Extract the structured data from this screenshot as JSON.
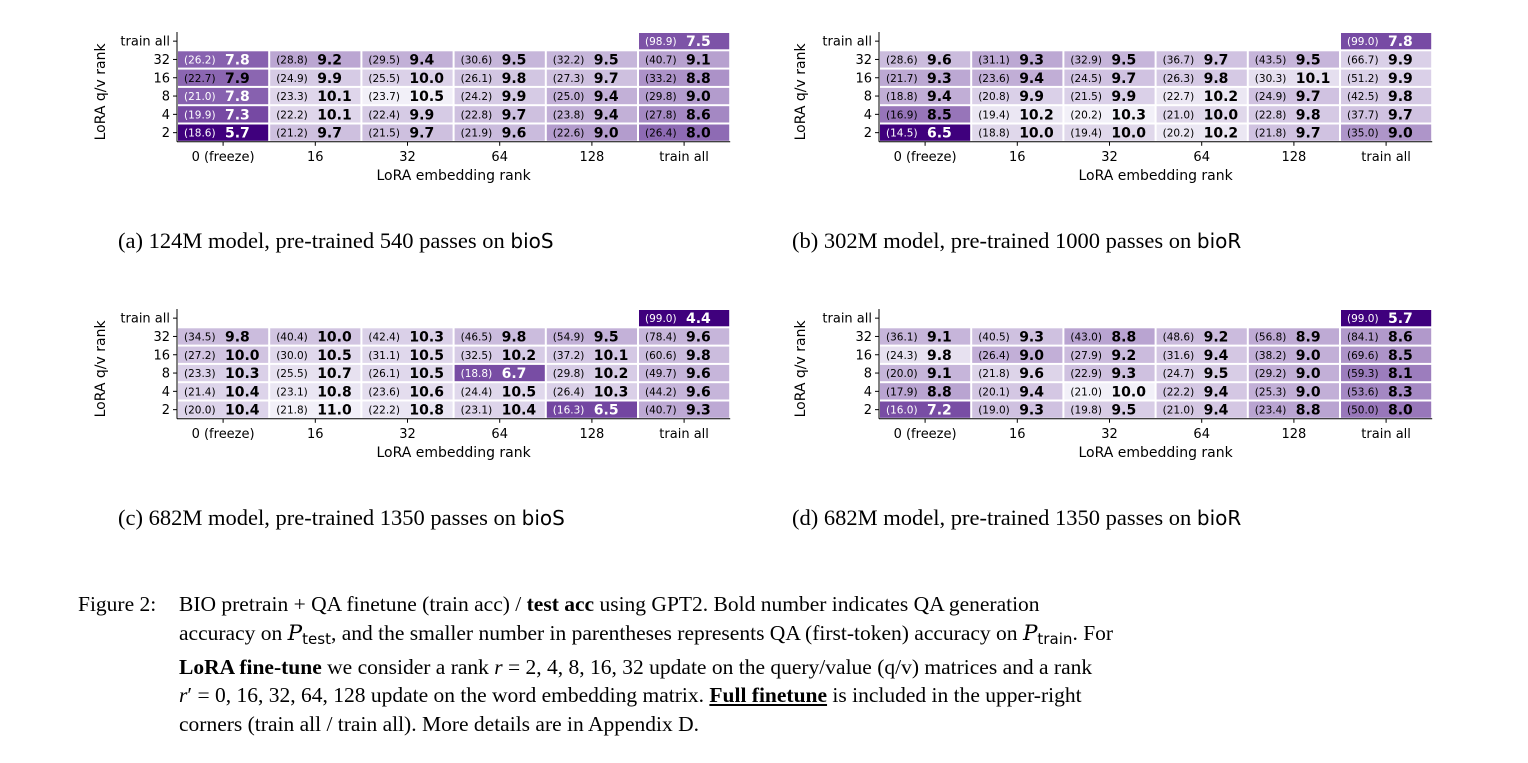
{
  "chart_data": [
    {
      "type": "heatmap",
      "xlabel": "LoRA embedding rank",
      "ylabel": "LoRA q/v rank",
      "x_categories": [
        "0 (freeze)",
        "16",
        "32",
        "64",
        "128",
        "train all"
      ],
      "y_categories": [
        "train all",
        "32",
        "16",
        "8",
        "4",
        "2"
      ],
      "cells": [
        [
          null,
          null,
          null,
          null,
          null,
          {
            "train": "98.9",
            "test": "7.5"
          }
        ],
        [
          {
            "train": "26.2",
            "test": "7.8"
          },
          {
            "train": "28.8",
            "test": "9.2"
          },
          {
            "train": "29.5",
            "test": "9.4"
          },
          {
            "train": "30.6",
            "test": "9.5"
          },
          {
            "train": "32.2",
            "test": "9.5"
          },
          {
            "train": "40.7",
            "test": "9.1"
          }
        ],
        [
          {
            "train": "22.7",
            "test": "7.9"
          },
          {
            "train": "24.9",
            "test": "9.9"
          },
          {
            "train": "25.5",
            "test": "10.0"
          },
          {
            "train": "26.1",
            "test": "9.8"
          },
          {
            "train": "27.3",
            "test": "9.7"
          },
          {
            "train": "33.2",
            "test": "8.8"
          }
        ],
        [
          {
            "train": "21.0",
            "test": "7.8"
          },
          {
            "train": "23.3",
            "test": "10.1"
          },
          {
            "train": "23.7",
            "test": "10.5"
          },
          {
            "train": "24.2",
            "test": "9.9"
          },
          {
            "train": "25.0",
            "test": "9.4"
          },
          {
            "train": "29.8",
            "test": "9.0"
          }
        ],
        [
          {
            "train": "19.9",
            "test": "7.3"
          },
          {
            "train": "22.2",
            "test": "10.1"
          },
          {
            "train": "22.4",
            "test": "9.9"
          },
          {
            "train": "22.8",
            "test": "9.7"
          },
          {
            "train": "23.8",
            "test": "9.4"
          },
          {
            "train": "27.8",
            "test": "8.6"
          }
        ],
        [
          {
            "train": "18.6",
            "test": "5.7"
          },
          {
            "train": "21.2",
            "test": "9.7"
          },
          {
            "train": "21.5",
            "test": "9.7"
          },
          {
            "train": "21.9",
            "test": "9.6"
          },
          {
            "train": "22.6",
            "test": "9.0"
          },
          {
            "train": "26.4",
            "test": "8.0"
          }
        ]
      ],
      "caption": {
        "label": "(a) 124M model, pre-trained 540 passes on ",
        "dataset": "bioS"
      }
    },
    {
      "type": "heatmap",
      "xlabel": "LoRA embedding rank",
      "ylabel": "LoRA q/v rank",
      "x_categories": [
        "0 (freeze)",
        "16",
        "32",
        "64",
        "128",
        "train all"
      ],
      "y_categories": [
        "train all",
        "32",
        "16",
        "8",
        "4",
        "2"
      ],
      "cells": [
        [
          null,
          null,
          null,
          null,
          null,
          {
            "train": "99.0",
            "test": "7.8"
          }
        ],
        [
          {
            "train": "28.6",
            "test": "9.6"
          },
          {
            "train": "31.1",
            "test": "9.3"
          },
          {
            "train": "32.9",
            "test": "9.5"
          },
          {
            "train": "36.7",
            "test": "9.7"
          },
          {
            "train": "43.5",
            "test": "9.5"
          },
          {
            "train": "66.7",
            "test": "9.9"
          }
        ],
        [
          {
            "train": "21.7",
            "test": "9.3"
          },
          {
            "train": "23.6",
            "test": "9.4"
          },
          {
            "train": "24.5",
            "test": "9.7"
          },
          {
            "train": "26.3",
            "test": "9.8"
          },
          {
            "train": "30.3",
            "test": "10.1"
          },
          {
            "train": "51.2",
            "test": "9.9"
          }
        ],
        [
          {
            "train": "18.8",
            "test": "9.4"
          },
          {
            "train": "20.8",
            "test": "9.9"
          },
          {
            "train": "21.5",
            "test": "9.9"
          },
          {
            "train": "22.7",
            "test": "10.2"
          },
          {
            "train": "24.9",
            "test": "9.7"
          },
          {
            "train": "42.5",
            "test": "9.8"
          }
        ],
        [
          {
            "train": "16.9",
            "test": "8.5"
          },
          {
            "train": "19.4",
            "test": "10.2"
          },
          {
            "train": "20.2",
            "test": "10.3"
          },
          {
            "train": "21.0",
            "test": "10.0"
          },
          {
            "train": "22.8",
            "test": "9.8"
          },
          {
            "train": "37.7",
            "test": "9.7"
          }
        ],
        [
          {
            "train": "14.5",
            "test": "6.5"
          },
          {
            "train": "18.8",
            "test": "10.0"
          },
          {
            "train": "19.4",
            "test": "10.0"
          },
          {
            "train": "20.2",
            "test": "10.2"
          },
          {
            "train": "21.8",
            "test": "9.7"
          },
          {
            "train": "35.0",
            "test": "9.0"
          }
        ]
      ],
      "caption": {
        "label": "(b) 302M model, pre-trained 1000 passes on ",
        "dataset": "bioR"
      }
    },
    {
      "type": "heatmap",
      "xlabel": "LoRA embedding rank",
      "ylabel": "LoRA q/v rank",
      "x_categories": [
        "0 (freeze)",
        "16",
        "32",
        "64",
        "128",
        "train all"
      ],
      "y_categories": [
        "train all",
        "32",
        "16",
        "8",
        "4",
        "2"
      ],
      "cells": [
        [
          null,
          null,
          null,
          null,
          null,
          {
            "train": "99.0",
            "test": "4.4"
          }
        ],
        [
          {
            "train": "34.5",
            "test": "9.8"
          },
          {
            "train": "40.4",
            "test": "10.0"
          },
          {
            "train": "42.4",
            "test": "10.3"
          },
          {
            "train": "46.5",
            "test": "9.8"
          },
          {
            "train": "54.9",
            "test": "9.5"
          },
          {
            "train": "78.4",
            "test": "9.6"
          }
        ],
        [
          {
            "train": "27.2",
            "test": "10.0"
          },
          {
            "train": "30.0",
            "test": "10.5"
          },
          {
            "train": "31.1",
            "test": "10.5"
          },
          {
            "train": "32.5",
            "test": "10.2"
          },
          {
            "train": "37.2",
            "test": "10.1"
          },
          {
            "train": "60.6",
            "test": "9.8"
          }
        ],
        [
          {
            "train": "23.3",
            "test": "10.3"
          },
          {
            "train": "25.5",
            "test": "10.7"
          },
          {
            "train": "26.1",
            "test": "10.5"
          },
          {
            "train": "18.8",
            "test": "6.7"
          },
          {
            "train": "29.8",
            "test": "10.2"
          },
          {
            "train": "49.7",
            "test": "9.6"
          }
        ],
        [
          {
            "train": "21.4",
            "test": "10.4"
          },
          {
            "train": "23.1",
            "test": "10.8"
          },
          {
            "train": "23.6",
            "test": "10.6"
          },
          {
            "train": "24.4",
            "test": "10.5"
          },
          {
            "train": "26.4",
            "test": "10.3"
          },
          {
            "train": "44.2",
            "test": "9.6"
          }
        ],
        [
          {
            "train": "20.0",
            "test": "10.4"
          },
          {
            "train": "21.8",
            "test": "11.0"
          },
          {
            "train": "22.2",
            "test": "10.8"
          },
          {
            "train": "23.1",
            "test": "10.4"
          },
          {
            "train": "16.3",
            "test": "6.5"
          },
          {
            "train": "40.7",
            "test": "9.3"
          }
        ]
      ],
      "caption": {
        "label": "(c) 682M model, pre-trained 1350 passes on ",
        "dataset": "bioS"
      }
    },
    {
      "type": "heatmap",
      "xlabel": "LoRA embedding rank",
      "ylabel": "LoRA q/v rank",
      "x_categories": [
        "0 (freeze)",
        "16",
        "32",
        "64",
        "128",
        "train all"
      ],
      "y_categories": [
        "train all",
        "32",
        "16",
        "8",
        "4",
        "2"
      ],
      "cells": [
        [
          null,
          null,
          null,
          null,
          null,
          {
            "train": "99.0",
            "test": "5.7"
          }
        ],
        [
          {
            "train": "36.1",
            "test": "9.1"
          },
          {
            "train": "40.5",
            "test": "9.3"
          },
          {
            "train": "43.0",
            "test": "8.8"
          },
          {
            "train": "48.6",
            "test": "9.2"
          },
          {
            "train": "56.8",
            "test": "8.9"
          },
          {
            "train": "84.1",
            "test": "8.6"
          }
        ],
        [
          {
            "train": "24.3",
            "test": "9.8"
          },
          {
            "train": "26.4",
            "test": "9.0"
          },
          {
            "train": "27.9",
            "test": "9.2"
          },
          {
            "train": "31.6",
            "test": "9.4"
          },
          {
            "train": "38.2",
            "test": "9.0"
          },
          {
            "train": "69.6",
            "test": "8.5"
          }
        ],
        [
          {
            "train": "20.0",
            "test": "9.1"
          },
          {
            "train": "21.8",
            "test": "9.6"
          },
          {
            "train": "22.9",
            "test": "9.3"
          },
          {
            "train": "24.7",
            "test": "9.5"
          },
          {
            "train": "29.2",
            "test": "9.0"
          },
          {
            "train": "59.3",
            "test": "8.1"
          }
        ],
        [
          {
            "train": "17.9",
            "test": "8.8"
          },
          {
            "train": "20.1",
            "test": "9.4"
          },
          {
            "train": "21.0",
            "test": "10.0"
          },
          {
            "train": "22.2",
            "test": "9.4"
          },
          {
            "train": "25.3",
            "test": "9.0"
          },
          {
            "train": "53.6",
            "test": "8.3"
          }
        ],
        [
          {
            "train": "16.0",
            "test": "7.2"
          },
          {
            "train": "19.0",
            "test": "9.3"
          },
          {
            "train": "19.8",
            "test": "9.5"
          },
          {
            "train": "21.0",
            "test": "9.4"
          },
          {
            "train": "23.4",
            "test": "8.8"
          },
          {
            "train": "50.0",
            "test": "8.0"
          }
        ]
      ],
      "caption": {
        "label": "(d) 682M model, pre-trained 1350 passes on ",
        "dataset": "bioR"
      }
    }
  ],
  "figure_caption": {
    "label": "Figure 2:",
    "line1_a": "BIO pretrain + QA finetune (train acc) / ",
    "line1_b": "test acc",
    "line1_c": " using GPT2. Bold number indicates QA generation",
    "line2_a": "accuracy on ",
    "line2_p": "P",
    "line2_sub_test": "test",
    "line2_b": ", and the smaller number in parentheses represents QA (first-token) accuracy on ",
    "line2_sub_train": "train",
    "line2_c": ". For",
    "line3_a": "LoRA fine-tune",
    "line3_b": " we consider a rank ",
    "line3_r": "r",
    "line3_c": " = 2, 4, 8, 16, 32 update on the query/value (q/v) matrices and a rank",
    "line4_r": "r",
    "line4_a": "′ = 0, 16, 32, 64, 128 update on the word embedding matrix. ",
    "line4_b": "Full finetune",
    "line4_c": " is included in the upper-right",
    "line5": "corners (train all / train all). More details are in Appendix D."
  },
  "colors": {
    "heat_low": "#f2f0f8",
    "heat_high": "#3f007d",
    "text_dark": "#000000",
    "text_light": "#ffffff"
  }
}
